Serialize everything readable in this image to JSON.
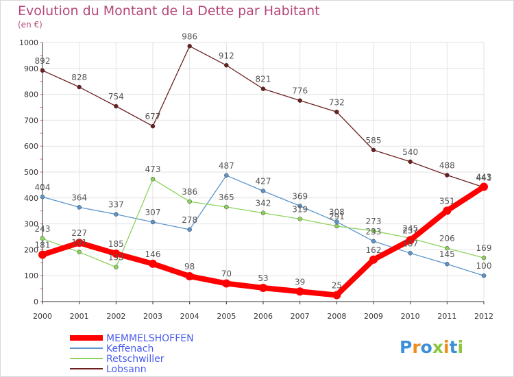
{
  "chart_data": {
    "type": "line",
    "title": "Evolution du Montant de la Dette par Habitant",
    "subtitle": "(en €)",
    "xlabel": "",
    "ylabel": "",
    "ylim": [
      0,
      1000
    ],
    "y_ticks": [
      0,
      100,
      200,
      300,
      400,
      500,
      600,
      700,
      800,
      900,
      1000
    ],
    "grid": true,
    "legend_position": "bottom-left",
    "categories": [
      "2000",
      "2001",
      "2002",
      "2003",
      "2004",
      "2005",
      "2006",
      "2007",
      "2008",
      "2009",
      "2010",
      "2011",
      "2012"
    ],
    "series": [
      {
        "name": "MEMMELSHOFFEN",
        "color": "#ff0000",
        "emphasis": true,
        "values": [
          181,
          227,
          185,
          146,
          98,
          70,
          53,
          39,
          25,
          162,
          237,
          351,
          443
        ]
      },
      {
        "name": "Keffenach",
        "color": "#5b95cc",
        "values": [
          404,
          364,
          337,
          307,
          278,
          487,
          427,
          369,
          308,
          233,
          187,
          145,
          100
        ]
      },
      {
        "name": "Retschwiller",
        "color": "#8cd35c",
        "values": [
          243,
          191,
          133,
          473,
          386,
          365,
          342,
          319,
          291,
          273,
          245,
          206,
          169
        ]
      },
      {
        "name": "Lobsann",
        "color": "#6b1f1f",
        "values": [
          892,
          828,
          754,
          677,
          986,
          912,
          821,
          776,
          732,
          585,
          540,
          488,
          441
        ]
      }
    ]
  },
  "brand": {
    "letters": [
      "P",
      "r",
      "o",
      "x",
      "i",
      "t",
      "i"
    ],
    "colors": [
      "#3c8fd8",
      "#f08a1c",
      "#3c8fd8",
      "#8cc63f",
      "#f08a1c",
      "#3c8fd8",
      "#8cc63f"
    ]
  }
}
